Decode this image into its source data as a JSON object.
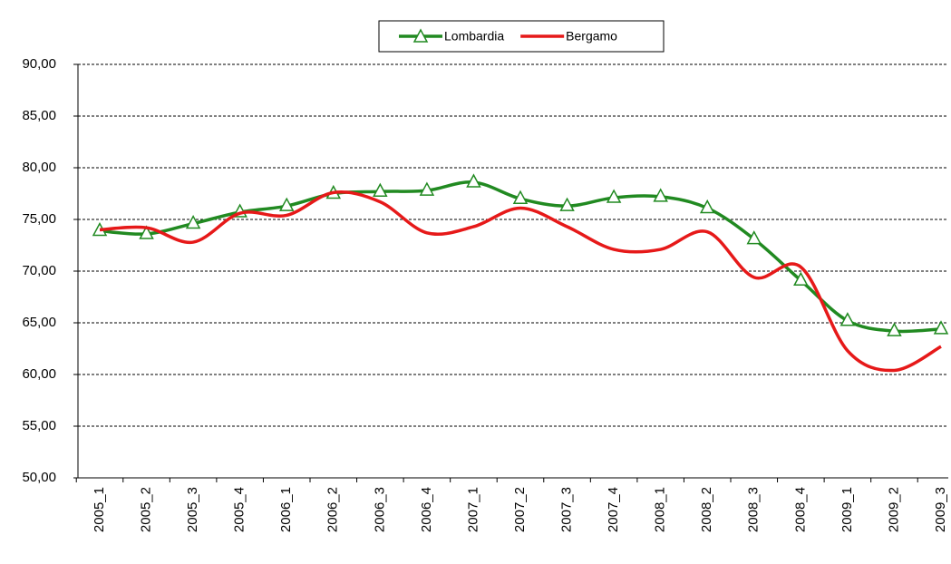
{
  "chart_data": {
    "type": "line",
    "categories": [
      "2005_1",
      "2005_2",
      "2005_3",
      "2005_4",
      "2006_1",
      "2006_2",
      "2006_3",
      "2006_4",
      "2007_1",
      "2007_2",
      "2007_3",
      "2007_4",
      "2008_1",
      "2008_2",
      "2008_3",
      "2008_4",
      "2009_1",
      "2009_2",
      "2009_3"
    ],
    "series": [
      {
        "name": "Lombardia",
        "color": "#218a21",
        "marker": "triangle",
        "values": [
          73.9,
          73.6,
          74.6,
          75.7,
          76.3,
          77.5,
          77.7,
          77.8,
          78.6,
          77.0,
          76.3,
          77.1,
          77.2,
          76.1,
          73.1,
          69.1,
          65.2,
          64.2,
          64.4
        ]
      },
      {
        "name": "Bergamo",
        "color": "#e61919",
        "values": [
          74.0,
          74.2,
          72.8,
          75.6,
          75.4,
          77.6,
          76.7,
          73.7,
          74.3,
          76.1,
          74.3,
          72.1,
          72.1,
          73.8,
          69.4,
          70.4,
          62.3,
          60.4,
          62.7
        ]
      }
    ],
    "ylim": [
      50,
      90
    ],
    "yticks": [
      {
        "value": 50,
        "label": "50,00"
      },
      {
        "value": 55,
        "label": "55,00"
      },
      {
        "value": 60,
        "label": "60,00"
      },
      {
        "value": 65,
        "label": "65,00"
      },
      {
        "value": 70,
        "label": "70,00"
      },
      {
        "value": 75,
        "label": "75,00"
      },
      {
        "value": 80,
        "label": "80,00"
      },
      {
        "value": 85,
        "label": "85,00"
      },
      {
        "value": 90,
        "label": "90,00"
      }
    ],
    "grid": true,
    "legend": "top"
  }
}
